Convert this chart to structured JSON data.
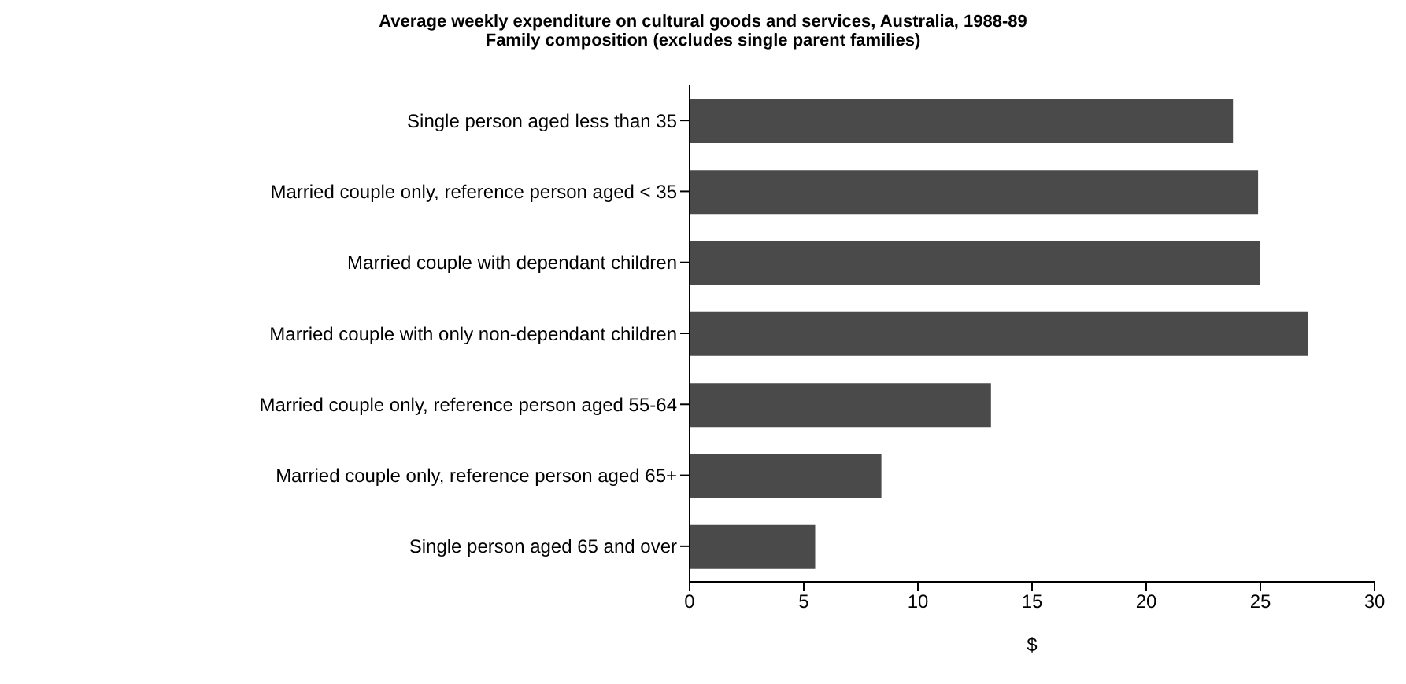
{
  "chart_data": {
    "type": "bar",
    "orientation": "horizontal",
    "title": "Average weekly expenditure on cultural goods and services, Australia, 1988-89",
    "subtitle": "Family composition (excludes single parent families)",
    "categories": [
      "Single person aged less than 35",
      "Married couple only, reference person aged < 35",
      "Married couple with dependant children",
      "Married couple with only non-dependant children",
      "Married couple only, reference person aged 55-64",
      "Married couple only, reference person aged 65+",
      "Single person aged 65 and over"
    ],
    "values": [
      23.8,
      24.9,
      25,
      27.1,
      13.2,
      8.4,
      5.5
    ],
    "color": "#4a4a4a",
    "xlim": [
      0,
      30
    ],
    "xticks": [
      0,
      5,
      10,
      15,
      20,
      25,
      30
    ],
    "xlabel": "$",
    "grid": false,
    "legend": false
  }
}
